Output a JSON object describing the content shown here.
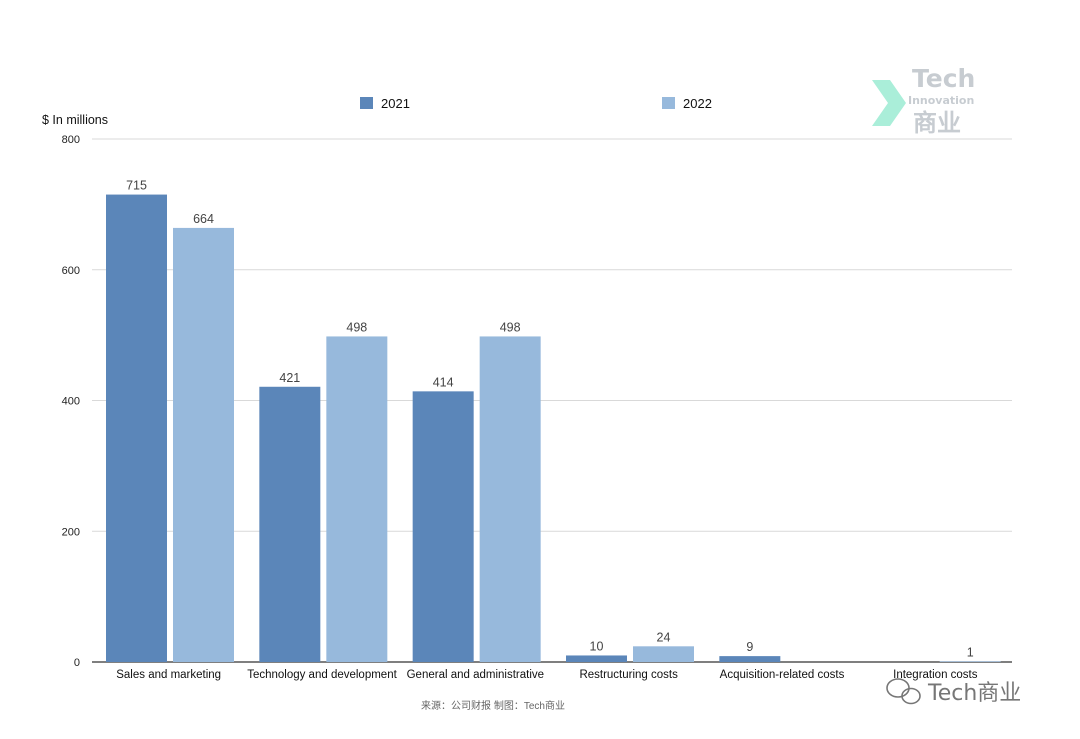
{
  "chart_data": {
    "type": "bar",
    "categories": [
      "Sales and marketing",
      "Technology and development",
      "General and administrative",
      "Restructuring costs",
      "Acquisition-related costs",
      "Integration costs"
    ],
    "series": [
      {
        "name": "2021",
        "color": "#5b86b9",
        "values": [
          715,
          421,
          414,
          10,
          9,
          null
        ]
      },
      {
        "name": "2022",
        "color": "#97b9dc",
        "values": [
          664,
          498,
          498,
          24,
          null,
          1
        ]
      }
    ],
    "data_labels": [
      [
        "715",
        "421",
        "414",
        "10",
        "9",
        ""
      ],
      [
        "664",
        "498",
        "498",
        "24",
        "",
        "1"
      ]
    ],
    "title": "",
    "ylabel": "$ In millions",
    "ylim": [
      0,
      800
    ],
    "yticks": [
      0,
      200,
      400,
      600,
      800
    ],
    "grid": true,
    "legend_position": "top"
  },
  "source_note": "来源：公司财报 制图：Tech商业",
  "watermark": {
    "logo_line1": "Tech",
    "logo_line2": "Innovation",
    "logo_line3": "商业",
    "wechat_name": "Tech商业",
    "accent_color": "#3fd7a8"
  }
}
